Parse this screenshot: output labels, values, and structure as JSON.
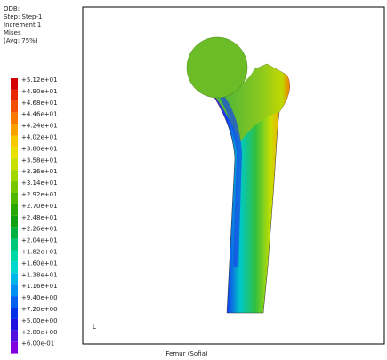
{
  "header": {
    "lines": [
      "ODB:",
      "Step: Step-1",
      "Increment 1",
      "Mises",
      "(Avg: 75%)"
    ]
  },
  "legend": {
    "entries": [
      {
        "label": "+5.12e+01",
        "color": "#d40000"
      },
      {
        "label": "+4.90e+01",
        "color": "#e82800"
      },
      {
        "label": "+4.68e+01",
        "color": "#f25000"
      },
      {
        "label": "+4.46e+01",
        "color": "#f87800"
      },
      {
        "label": "+4.24e+01",
        "color": "#fca000"
      },
      {
        "label": "+4.02e+01",
        "color": "#f8c800"
      },
      {
        "label": "+3.80e+01",
        "color": "#e8e000"
      },
      {
        "label": "+3.58e+01",
        "color": "#c8e000"
      },
      {
        "label": "+3.36e+01",
        "color": "#a0d800"
      },
      {
        "label": "+3.14e+01",
        "color": "#78c800"
      },
      {
        "label": "+2.92e+01",
        "color": "#50b800"
      },
      {
        "label": "+2.70e+01",
        "color": "#28a800"
      },
      {
        "label": "+2.48e+01",
        "color": "#10a010"
      },
      {
        "label": "+2.26e+01",
        "color": "#00b040"
      },
      {
        "label": "+2.04e+01",
        "color": "#00c878"
      },
      {
        "label": "+1.82e+01",
        "color": "#00d8a8"
      },
      {
        "label": "+1.60e+01",
        "color": "#00d8d0"
      },
      {
        "label": "+1.38e+01",
        "color": "#00b8e8"
      },
      {
        "label": "+1.16e+01",
        "color": "#0090f0"
      },
      {
        "label": "+9.40e+00",
        "color": "#0060f0"
      },
      {
        "label": "+7.20e+00",
        "color": "#0030e8"
      },
      {
        "label": "+5.00e+00",
        "color": "#2010e0"
      },
      {
        "label": "+2.80e+00",
        "color": "#5010e0"
      },
      {
        "label": "+6.00e-01",
        "color": "#8000e0"
      }
    ]
  },
  "viewport": {
    "axis_label": "L",
    "caption": "Femur (Sofia)"
  }
}
